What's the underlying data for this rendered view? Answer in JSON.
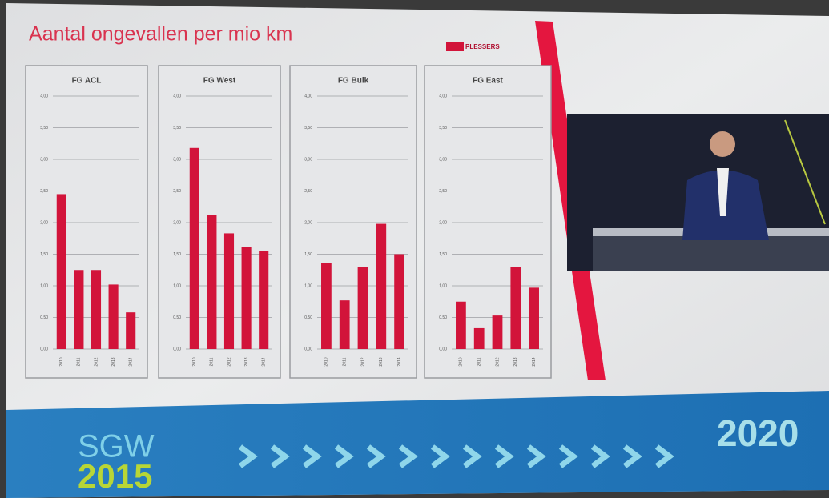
{
  "slide": {
    "title": "Aantal ongevallen per mio km",
    "logo": "PLESSERS",
    "brand": "SGW",
    "brand_year": "2015",
    "target_year": "2020"
  },
  "chart_data": [
    {
      "type": "bar",
      "title": "FG ACL",
      "categories": [
        "2010",
        "2011",
        "2012",
        "2013",
        "2014"
      ],
      "values": [
        2.45,
        1.25,
        1.25,
        1.02,
        0.58
      ],
      "color": "#d2143a",
      "ylim": [
        0,
        4
      ],
      "yticks": [
        {
          "value": 0,
          "label": "0,00"
        },
        {
          "value": 0.5,
          "label": "0,50"
        },
        {
          "value": 1,
          "label": "1,00"
        },
        {
          "value": 1.5,
          "label": "1,50"
        },
        {
          "value": 2,
          "label": "2,00"
        },
        {
          "value": 2.5,
          "label": "2,50"
        },
        {
          "value": 3,
          "label": "3,00"
        },
        {
          "value": 3.5,
          "label": "3,50"
        },
        {
          "value": 4,
          "label": "4,00"
        }
      ],
      "grid": true
    },
    {
      "type": "bar",
      "title": "FG West",
      "categories": [
        "2010",
        "2011",
        "2012",
        "2013",
        "2014"
      ],
      "values": [
        3.18,
        2.12,
        1.83,
        1.62,
        1.55
      ],
      "color": "#d2143a",
      "ylim": [
        0,
        4
      ],
      "yticks": [
        {
          "value": 0,
          "label": "0,00"
        },
        {
          "value": 0.5,
          "label": "0,50"
        },
        {
          "value": 1,
          "label": "1,00"
        },
        {
          "value": 1.5,
          "label": "1,50"
        },
        {
          "value": 2,
          "label": "2,00"
        },
        {
          "value": 2.5,
          "label": "2,50"
        },
        {
          "value": 3,
          "label": "3,00"
        },
        {
          "value": 3.5,
          "label": "3,50"
        },
        {
          "value": 4,
          "label": "4,00"
        }
      ],
      "grid": true
    },
    {
      "type": "bar",
      "title": "FG Bulk",
      "categories": [
        "2010",
        "2011",
        "2012",
        "2013",
        "2014"
      ],
      "values": [
        1.36,
        0.77,
        1.3,
        1.98,
        1.5
      ],
      "color": "#d2143a",
      "ylim": [
        0,
        4
      ],
      "yticks": [
        {
          "value": 0,
          "label": "0,00"
        },
        {
          "value": 0.5,
          "label": "0,50"
        },
        {
          "value": 1,
          "label": "1,00"
        },
        {
          "value": 1.5,
          "label": "1,50"
        },
        {
          "value": 2,
          "label": "2,00"
        },
        {
          "value": 2.5,
          "label": "2,50"
        },
        {
          "value": 3,
          "label": "3,00"
        },
        {
          "value": 3.5,
          "label": "3,50"
        },
        {
          "value": 4,
          "label": "4,00"
        }
      ],
      "grid": true
    },
    {
      "type": "bar",
      "title": "FG East",
      "categories": [
        "2010",
        "2011",
        "2012",
        "2013",
        "2014"
      ],
      "values": [
        0.75,
        0.33,
        0.53,
        1.3,
        0.97
      ],
      "color": "#d2143a",
      "ylim": [
        0,
        4
      ],
      "yticks": [
        {
          "value": 0,
          "label": "0,00"
        },
        {
          "value": 0.5,
          "label": "0,50"
        },
        {
          "value": 1,
          "label": "1,00"
        },
        {
          "value": 1.5,
          "label": "1,50"
        },
        {
          "value": 2,
          "label": "2,00"
        },
        {
          "value": 2.5,
          "label": "2,50"
        },
        {
          "value": 3,
          "label": "3,00"
        },
        {
          "value": 3.5,
          "label": "3,50"
        },
        {
          "value": 4,
          "label": "4,00"
        }
      ],
      "grid": true
    }
  ]
}
